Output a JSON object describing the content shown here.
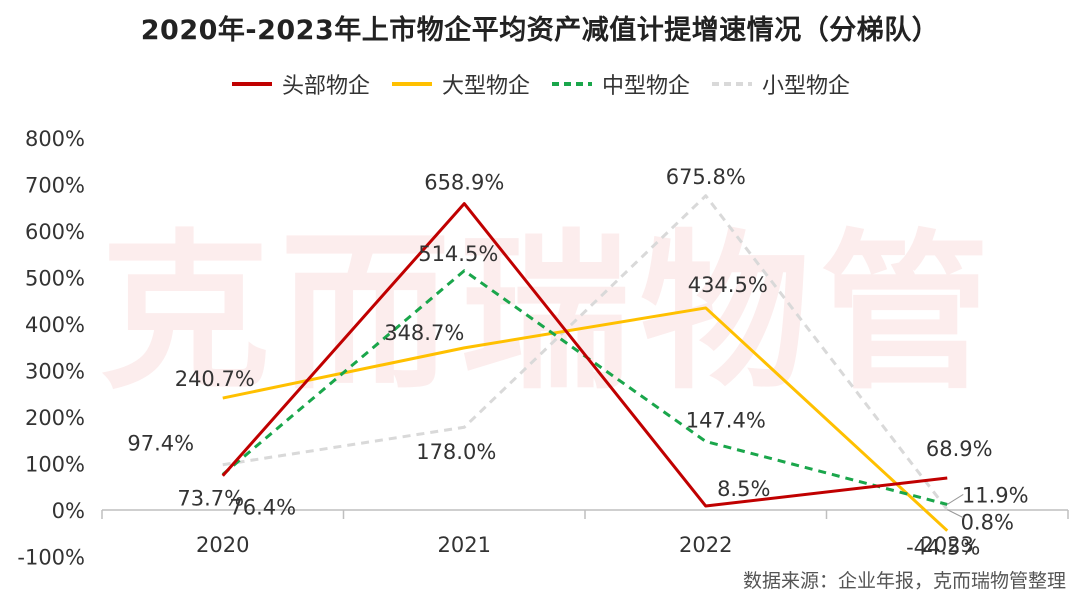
{
  "title": "2020年-2023年上市物企平均资产减值计提增速情况（分梯队）",
  "watermark": "克而瑞物管",
  "source": "数据来源：企业年报，克而瑞物管整理",
  "colors": {
    "head": "#c00000",
    "large": "#ffc000",
    "medium": "#1aa64b",
    "small": "#d9d9d9"
  },
  "chart_data": {
    "type": "line",
    "title": "2020年-2023年上市物企平均资产减值计提增速情况（分梯队）",
    "categories": [
      "2020",
      "2021",
      "2022",
      "2023"
    ],
    "ylim": [
      -100,
      800
    ],
    "yticks": [
      "-100%",
      "0%",
      "100%",
      "200%",
      "300%",
      "400%",
      "500%",
      "600%",
      "700%",
      "800%"
    ],
    "legend_position": "top",
    "grid": false,
    "series": [
      {
        "name": "头部物企",
        "values": [
          73.7,
          658.9,
          8.5,
          68.9
        ],
        "labels": [
          "73.7%",
          "658.9%",
          "8.5%",
          "68.9%"
        ],
        "style": "solid",
        "color": "#c00000"
      },
      {
        "name": "大型物企",
        "values": [
          240.7,
          348.7,
          434.5,
          -44.5
        ],
        "labels": [
          "240.7%",
          "348.7%",
          "434.5%",
          "-44.5%"
        ],
        "style": "solid",
        "color": "#ffc000"
      },
      {
        "name": "中型物企",
        "values": [
          76.4,
          514.5,
          147.4,
          11.9
        ],
        "labels": [
          "76.4%",
          "514.5%",
          "147.4%",
          "11.9%"
        ],
        "style": "dashed",
        "color": "#1aa64b"
      },
      {
        "name": "小型物企",
        "values": [
          97.4,
          178.0,
          675.8,
          0.8
        ],
        "labels": [
          "97.4%",
          "178.0%",
          "675.8%",
          "0.8%"
        ],
        "style": "dashed",
        "color": "#d9d9d9"
      }
    ]
  }
}
